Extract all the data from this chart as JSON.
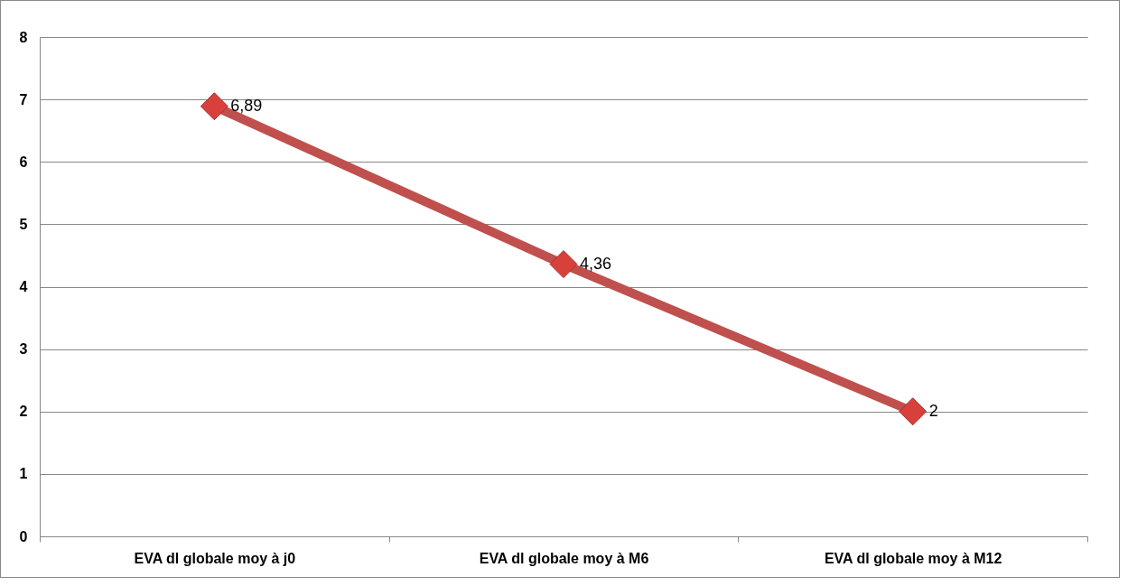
{
  "chart_data": {
    "type": "line",
    "categories": [
      "EVA dl globale moy à j0",
      "EVA dl globale moy à M6",
      "EVA dl globale moy à M12"
    ],
    "values": [
      6.89,
      4.36,
      2
    ],
    "value_labels": [
      "6,89",
      "4,36",
      "2"
    ],
    "color": "#c0504d",
    "marker": "diamond",
    "line_style": "solid",
    "ylim": [
      0,
      8
    ],
    "yticks": [
      0,
      1,
      2,
      3,
      4,
      5,
      6,
      7,
      8
    ],
    "grid": "y"
  }
}
